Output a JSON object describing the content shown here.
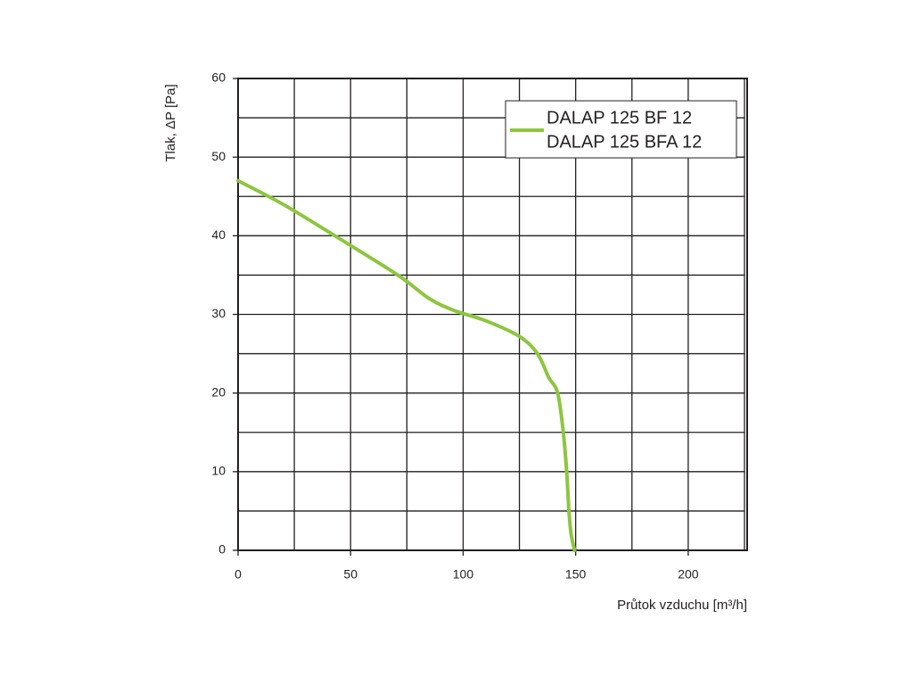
{
  "chart_data": {
    "type": "line",
    "y_label": "Tlak, ΔP [Pa]",
    "x_label": "Průtok vzduchu [m³/h]",
    "legend_labels": [
      "DALAP 125 BF 12",
      "DALAP 125 BFA 12"
    ],
    "legend": "upper right",
    "x": [
      0,
      20,
      43,
      71,
      85,
      96,
      110,
      125,
      133,
      138,
      142,
      144.5,
      146,
      147,
      148,
      149.5
    ],
    "series": [
      {
        "color": "#8dc63f",
        "values": [
          47,
          44,
          40,
          35,
          32,
          30.5,
          29.2,
          27.2,
          25,
          22,
          20,
          15,
          10,
          5,
          2,
          0
        ]
      }
    ],
    "xlim": [
      0,
      225
    ],
    "ylim": [
      0,
      60
    ],
    "xticks": [
      0,
      50,
      100,
      150,
      200
    ],
    "yticks": [
      0,
      10,
      20,
      30,
      40,
      50,
      60
    ],
    "xgrid": [
      0,
      25,
      50,
      75,
      100,
      125,
      150,
      175,
      200,
      225
    ],
    "ygrid": [
      0,
      5,
      10,
      15,
      20,
      25,
      30,
      35,
      40,
      45,
      50,
      55,
      60
    ],
    "grid": true
  }
}
